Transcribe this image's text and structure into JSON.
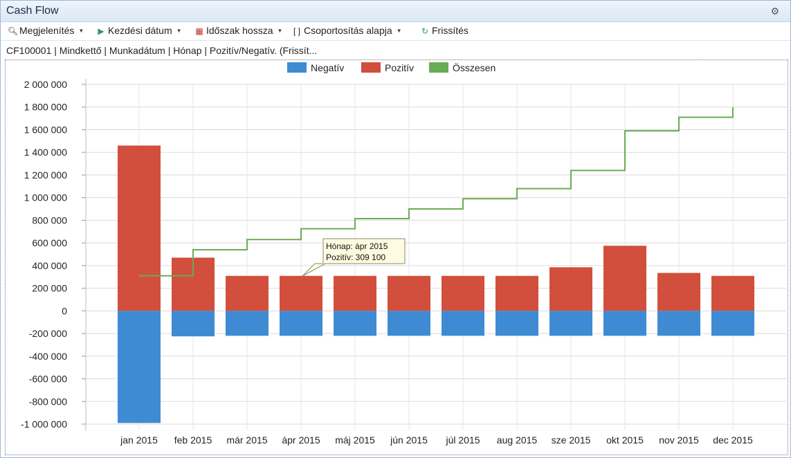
{
  "window": {
    "title": "Cash Flow"
  },
  "icons": {
    "pin": "gear-pin-icon"
  },
  "toolbar": {
    "display_label": "Megjelenítés",
    "start_date_label": "Kezdési dátum",
    "period_length_label": "Időszak hossza",
    "grouping_label": "Csoportosítás alapja",
    "refresh_label": "Frissítés"
  },
  "info": {
    "summary": "CF100001 | Mindkettő | Munkadátum | Hónap | Pozitív/Negatív.  (Frissít..."
  },
  "tooltip": {
    "line1": "Hónap: ápr 2015",
    "line2": "Pozitív: 309 100"
  },
  "chart_data": {
    "type": "bar",
    "categories": [
      "jan 2015",
      "feb 2015",
      "már 2015",
      "ápr 2015",
      "máj 2015",
      "jún 2015",
      "júl 2015",
      "aug 2015",
      "sze 2015",
      "okt 2015",
      "nov 2015",
      "dec 2015"
    ],
    "ylim": [
      -1000000,
      2000000
    ],
    "yticks": [
      2000000,
      1800000,
      1600000,
      1400000,
      1200000,
      1000000,
      800000,
      600000,
      400000,
      200000,
      0,
      -200000,
      -400000,
      -600000,
      -800000,
      -1000000
    ],
    "ytick_labels": [
      "2 000 000",
      "1 800 000",
      "1 600 000",
      "1 400 000",
      "1 200 000",
      "1 000 000",
      "800 000",
      "600 000",
      "400 000",
      "200 000",
      "0",
      "-200 000",
      "-400 000",
      "-600 000",
      "-800 000",
      "-1 000 000"
    ],
    "legend": "top-center",
    "grid": true,
    "series": [
      {
        "name": "Negatív",
        "color": "#3e8bd4",
        "values": [
          -990000,
          -225000,
          -220000,
          -220000,
          -220000,
          -220000,
          -220000,
          -220000,
          -220000,
          -220000,
          -220000,
          -220000
        ]
      },
      {
        "name": "Pozitív",
        "color": "#d14f3c",
        "values": [
          1460000,
          470000,
          309100,
          309100,
          309100,
          309100,
          309100,
          309100,
          385000,
          575000,
          335000,
          309100
        ]
      },
      {
        "name": "Összesen",
        "color": "#6aac55",
        "type": "step",
        "values": [
          310000,
          540000,
          630000,
          725000,
          815000,
          900000,
          990000,
          1080000,
          1240000,
          1590000,
          1710000,
          1800000
        ]
      }
    ]
  }
}
